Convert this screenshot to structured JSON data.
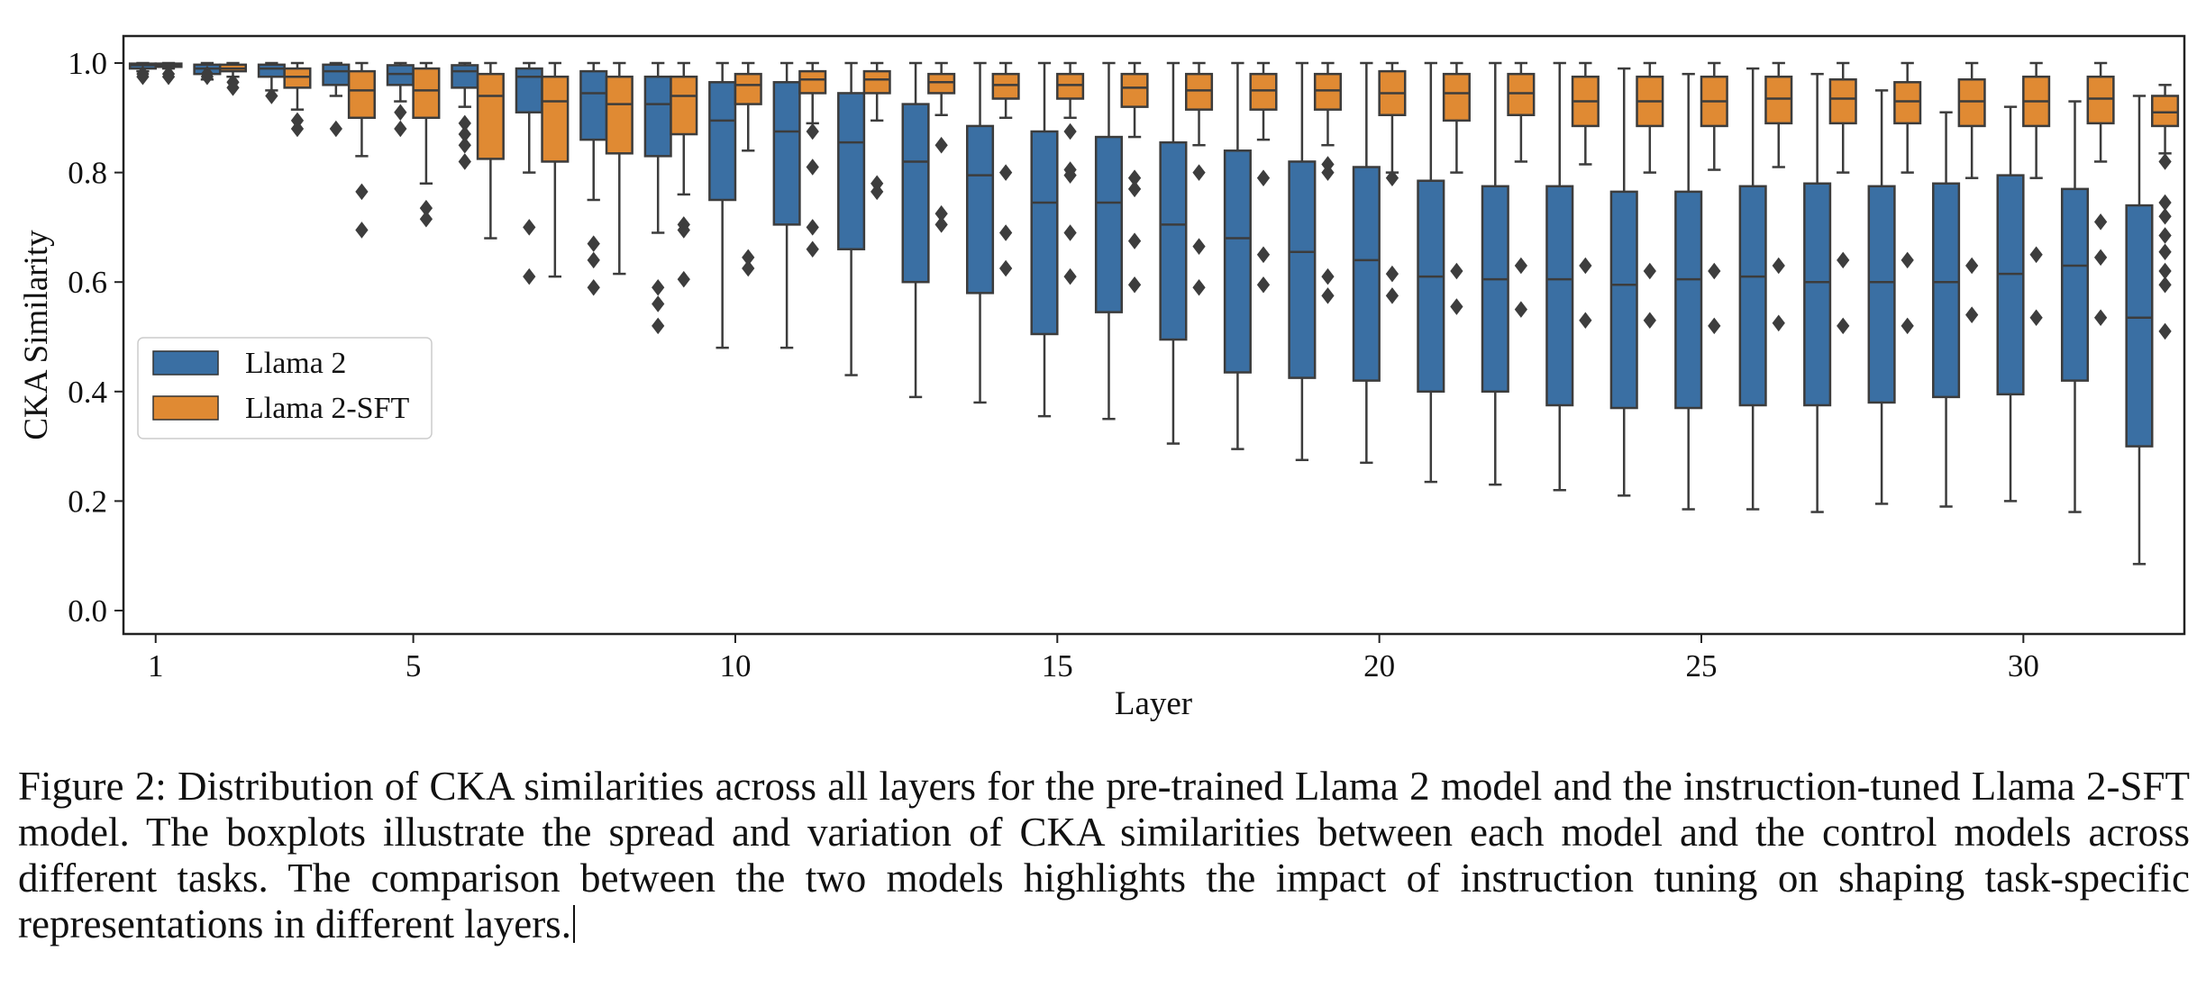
{
  "chart_data": {
    "type": "boxplot",
    "xlabel": "Layer",
    "ylabel": "CKA Similarity",
    "ylim": [
      0.0,
      1.0
    ],
    "yticks": [
      0.0,
      0.2,
      0.4,
      0.6,
      0.8,
      1.0
    ],
    "ytick_labels": [
      "0.0",
      "0.2",
      "0.4",
      "0.6",
      "0.8",
      "1.0"
    ],
    "xticks": [
      1,
      5,
      10,
      15,
      20,
      25,
      30
    ],
    "xtick_labels": [
      "1",
      "5",
      "10",
      "15",
      "20",
      "25",
      "30"
    ],
    "legend_position": "center-left",
    "grid": false,
    "categories": [
      1,
      2,
      3,
      4,
      5,
      6,
      7,
      8,
      9,
      10,
      11,
      12,
      13,
      14,
      15,
      16,
      17,
      18,
      19,
      20,
      21,
      22,
      23,
      24,
      25,
      26,
      27,
      28,
      29,
      30,
      31,
      32
    ],
    "series": [
      {
        "name": "Llama 2",
        "color": "#3a6fa3",
        "boxes": [
          {
            "layer": 1,
            "whislo": 0.985,
            "q1": 0.99,
            "med": 0.996,
            "q3": 0.999,
            "whishi": 1.0,
            "fliers": [
              0.975,
              0.98
            ]
          },
          {
            "layer": 2,
            "whislo": 0.97,
            "q1": 0.98,
            "med": 0.99,
            "q3": 0.997,
            "whishi": 1.0,
            "fliers": [
              0.975,
              0.98
            ]
          },
          {
            "layer": 3,
            "whislo": 0.95,
            "q1": 0.975,
            "med": 0.99,
            "q3": 0.997,
            "whishi": 1.0,
            "fliers": [
              0.94
            ]
          },
          {
            "layer": 4,
            "whislo": 0.94,
            "q1": 0.96,
            "med": 0.985,
            "q3": 0.997,
            "whishi": 1.0,
            "fliers": [
              0.88
            ]
          },
          {
            "layer": 5,
            "whislo": 0.93,
            "q1": 0.96,
            "med": 0.98,
            "q3": 0.996,
            "whishi": 1.0,
            "fliers": [
              0.91,
              0.88
            ]
          },
          {
            "layer": 6,
            "whislo": 0.92,
            "q1": 0.955,
            "med": 0.985,
            "q3": 0.996,
            "whishi": 1.0,
            "fliers": [
              0.89,
              0.87,
              0.85,
              0.82
            ]
          },
          {
            "layer": 7,
            "whislo": 0.8,
            "q1": 0.91,
            "med": 0.975,
            "q3": 0.99,
            "whishi": 1.0,
            "fliers": [
              0.7,
              0.61
            ]
          },
          {
            "layer": 8,
            "whislo": 0.75,
            "q1": 0.86,
            "med": 0.945,
            "q3": 0.985,
            "whishi": 1.0,
            "fliers": [
              0.67,
              0.64,
              0.59
            ]
          },
          {
            "layer": 9,
            "whislo": 0.69,
            "q1": 0.83,
            "med": 0.925,
            "q3": 0.975,
            "whishi": 1.0,
            "fliers": [
              0.59,
              0.56,
              0.52
            ]
          },
          {
            "layer": 10,
            "whislo": 0.48,
            "q1": 0.75,
            "med": 0.895,
            "q3": 0.965,
            "whishi": 1.0,
            "fliers": []
          },
          {
            "layer": 11,
            "whislo": 0.48,
            "q1": 0.705,
            "med": 0.875,
            "q3": 0.965,
            "whishi": 1.0,
            "fliers": []
          },
          {
            "layer": 12,
            "whislo": 0.43,
            "q1": 0.66,
            "med": 0.855,
            "q3": 0.945,
            "whishi": 1.0,
            "fliers": []
          },
          {
            "layer": 13,
            "whislo": 0.39,
            "q1": 0.6,
            "med": 0.82,
            "q3": 0.925,
            "whishi": 1.0,
            "fliers": []
          },
          {
            "layer": 14,
            "whislo": 0.38,
            "q1": 0.58,
            "med": 0.795,
            "q3": 0.885,
            "whishi": 1.0,
            "fliers": []
          },
          {
            "layer": 15,
            "whislo": 0.355,
            "q1": 0.505,
            "med": 0.745,
            "q3": 0.875,
            "whishi": 1.0,
            "fliers": []
          },
          {
            "layer": 16,
            "whislo": 0.35,
            "q1": 0.545,
            "med": 0.745,
            "q3": 0.865,
            "whishi": 1.0,
            "fliers": []
          },
          {
            "layer": 17,
            "whislo": 0.305,
            "q1": 0.495,
            "med": 0.705,
            "q3": 0.855,
            "whishi": 1.0,
            "fliers": []
          },
          {
            "layer": 18,
            "whislo": 0.295,
            "q1": 0.435,
            "med": 0.68,
            "q3": 0.84,
            "whishi": 1.0,
            "fliers": []
          },
          {
            "layer": 19,
            "whislo": 0.275,
            "q1": 0.425,
            "med": 0.655,
            "q3": 0.82,
            "whishi": 1.0,
            "fliers": []
          },
          {
            "layer": 20,
            "whislo": 0.27,
            "q1": 0.42,
            "med": 0.64,
            "q3": 0.81,
            "whishi": 1.0,
            "fliers": []
          },
          {
            "layer": 21,
            "whislo": 0.235,
            "q1": 0.4,
            "med": 0.61,
            "q3": 0.785,
            "whishi": 1.0,
            "fliers": []
          },
          {
            "layer": 22,
            "whislo": 0.23,
            "q1": 0.4,
            "med": 0.605,
            "q3": 0.775,
            "whishi": 1.0,
            "fliers": []
          },
          {
            "layer": 23,
            "whislo": 0.22,
            "q1": 0.375,
            "med": 0.605,
            "q3": 0.775,
            "whishi": 1.0,
            "fliers": []
          },
          {
            "layer": 24,
            "whislo": 0.21,
            "q1": 0.37,
            "med": 0.595,
            "q3": 0.765,
            "whishi": 0.99,
            "fliers": []
          },
          {
            "layer": 25,
            "whislo": 0.185,
            "q1": 0.37,
            "med": 0.605,
            "q3": 0.765,
            "whishi": 0.98,
            "fliers": []
          },
          {
            "layer": 26,
            "whislo": 0.185,
            "q1": 0.375,
            "med": 0.61,
            "q3": 0.775,
            "whishi": 0.99,
            "fliers": []
          },
          {
            "layer": 27,
            "whislo": 0.18,
            "q1": 0.375,
            "med": 0.6,
            "q3": 0.78,
            "whishi": 0.98,
            "fliers": []
          },
          {
            "layer": 28,
            "whislo": 0.195,
            "q1": 0.38,
            "med": 0.6,
            "q3": 0.775,
            "whishi": 0.95,
            "fliers": []
          },
          {
            "layer": 29,
            "whislo": 0.19,
            "q1": 0.39,
            "med": 0.6,
            "q3": 0.78,
            "whishi": 0.91,
            "fliers": []
          },
          {
            "layer": 30,
            "whislo": 0.2,
            "q1": 0.395,
            "med": 0.615,
            "q3": 0.795,
            "whishi": 0.92,
            "fliers": []
          },
          {
            "layer": 31,
            "whislo": 0.18,
            "q1": 0.42,
            "med": 0.63,
            "q3": 0.77,
            "whishi": 0.93,
            "fliers": []
          },
          {
            "layer": 32,
            "whislo": 0.085,
            "q1": 0.3,
            "med": 0.535,
            "q3": 0.74,
            "whishi": 0.94,
            "fliers": []
          }
        ]
      },
      {
        "name": "Llama 2-SFT",
        "color": "#e08a33",
        "boxes": [
          {
            "layer": 1,
            "whislo": 0.99,
            "q1": 0.993,
            "med": 0.997,
            "q3": 0.999,
            "whishi": 1.0,
            "fliers": [
              0.98,
              0.975
            ]
          },
          {
            "layer": 2,
            "whislo": 0.975,
            "q1": 0.985,
            "med": 0.99,
            "q3": 0.997,
            "whishi": 1.0,
            "fliers": [
              0.965,
              0.955
            ]
          },
          {
            "layer": 3,
            "whislo": 0.915,
            "q1": 0.955,
            "med": 0.975,
            "q3": 0.99,
            "whishi": 1.0,
            "fliers": [
              0.895,
              0.88
            ]
          },
          {
            "layer": 4,
            "whislo": 0.83,
            "q1": 0.9,
            "med": 0.95,
            "q3": 0.985,
            "whishi": 1.0,
            "fliers": [
              0.765,
              0.695
            ]
          },
          {
            "layer": 5,
            "whislo": 0.78,
            "q1": 0.9,
            "med": 0.95,
            "q3": 0.99,
            "whishi": 1.0,
            "fliers": [
              0.735,
              0.715
            ]
          },
          {
            "layer": 6,
            "whislo": 0.68,
            "q1": 0.825,
            "med": 0.94,
            "q3": 0.98,
            "whishi": 1.0,
            "fliers": []
          },
          {
            "layer": 7,
            "whislo": 0.61,
            "q1": 0.82,
            "med": 0.93,
            "q3": 0.975,
            "whishi": 1.0,
            "fliers": []
          },
          {
            "layer": 8,
            "whislo": 0.615,
            "q1": 0.835,
            "med": 0.925,
            "q3": 0.975,
            "whishi": 1.0,
            "fliers": []
          },
          {
            "layer": 9,
            "whislo": 0.76,
            "q1": 0.87,
            "med": 0.94,
            "q3": 0.975,
            "whishi": 1.0,
            "fliers": [
              0.705,
              0.695,
              0.605
            ]
          },
          {
            "layer": 10,
            "whislo": 0.84,
            "q1": 0.925,
            "med": 0.96,
            "q3": 0.98,
            "whishi": 1.0,
            "fliers": [
              0.645,
              0.625
            ]
          },
          {
            "layer": 11,
            "whislo": 0.89,
            "q1": 0.945,
            "med": 0.97,
            "q3": 0.985,
            "whishi": 1.0,
            "fliers": [
              0.875,
              0.81,
              0.7,
              0.66
            ]
          },
          {
            "layer": 12,
            "whislo": 0.895,
            "q1": 0.945,
            "med": 0.97,
            "q3": 0.985,
            "whishi": 1.0,
            "fliers": [
              0.78,
              0.765
            ]
          },
          {
            "layer": 13,
            "whislo": 0.905,
            "q1": 0.945,
            "med": 0.965,
            "q3": 0.98,
            "whishi": 1.0,
            "fliers": [
              0.85,
              0.725,
              0.705
            ]
          },
          {
            "layer": 14,
            "whislo": 0.9,
            "q1": 0.935,
            "med": 0.96,
            "q3": 0.98,
            "whishi": 1.0,
            "fliers": [
              0.8,
              0.69,
              0.625
            ]
          },
          {
            "layer": 15,
            "whislo": 0.9,
            "q1": 0.935,
            "med": 0.96,
            "q3": 0.98,
            "whishi": 1.0,
            "fliers": [
              0.875,
              0.805,
              0.795,
              0.69,
              0.61
            ]
          },
          {
            "layer": 16,
            "whislo": 0.865,
            "q1": 0.92,
            "med": 0.955,
            "q3": 0.98,
            "whishi": 1.0,
            "fliers": [
              0.79,
              0.77,
              0.675,
              0.595
            ]
          },
          {
            "layer": 17,
            "whislo": 0.85,
            "q1": 0.915,
            "med": 0.95,
            "q3": 0.98,
            "whishi": 1.0,
            "fliers": [
              0.8,
              0.665,
              0.59
            ]
          },
          {
            "layer": 18,
            "whislo": 0.86,
            "q1": 0.915,
            "med": 0.95,
            "q3": 0.98,
            "whishi": 1.0,
            "fliers": [
              0.79,
              0.65,
              0.595
            ]
          },
          {
            "layer": 19,
            "whislo": 0.85,
            "q1": 0.915,
            "med": 0.95,
            "q3": 0.98,
            "whishi": 1.0,
            "fliers": [
              0.815,
              0.8,
              0.61,
              0.575
            ]
          },
          {
            "layer": 20,
            "whislo": 0.8,
            "q1": 0.905,
            "med": 0.945,
            "q3": 0.985,
            "whishi": 1.0,
            "fliers": [
              0.79,
              0.615,
              0.575
            ]
          },
          {
            "layer": 21,
            "whislo": 0.8,
            "q1": 0.895,
            "med": 0.945,
            "q3": 0.98,
            "whishi": 1.0,
            "fliers": [
              0.62,
              0.555
            ]
          },
          {
            "layer": 22,
            "whislo": 0.82,
            "q1": 0.905,
            "med": 0.945,
            "q3": 0.98,
            "whishi": 1.0,
            "fliers": [
              0.63,
              0.55
            ]
          },
          {
            "layer": 23,
            "whislo": 0.815,
            "q1": 0.885,
            "med": 0.93,
            "q3": 0.975,
            "whishi": 1.0,
            "fliers": [
              0.63,
              0.53
            ]
          },
          {
            "layer": 24,
            "whislo": 0.8,
            "q1": 0.885,
            "med": 0.93,
            "q3": 0.975,
            "whishi": 1.0,
            "fliers": [
              0.62,
              0.53
            ]
          },
          {
            "layer": 25,
            "whislo": 0.805,
            "q1": 0.885,
            "med": 0.93,
            "q3": 0.975,
            "whishi": 1.0,
            "fliers": [
              0.62,
              0.52
            ]
          },
          {
            "layer": 26,
            "whislo": 0.81,
            "q1": 0.89,
            "med": 0.935,
            "q3": 0.975,
            "whishi": 1.0,
            "fliers": [
              0.63,
              0.525
            ]
          },
          {
            "layer": 27,
            "whislo": 0.8,
            "q1": 0.89,
            "med": 0.935,
            "q3": 0.97,
            "whishi": 1.0,
            "fliers": [
              0.64,
              0.52
            ]
          },
          {
            "layer": 28,
            "whislo": 0.8,
            "q1": 0.89,
            "med": 0.93,
            "q3": 0.965,
            "whishi": 1.0,
            "fliers": [
              0.64,
              0.52
            ]
          },
          {
            "layer": 29,
            "whislo": 0.79,
            "q1": 0.885,
            "med": 0.93,
            "q3": 0.97,
            "whishi": 1.0,
            "fliers": [
              0.63,
              0.54
            ]
          },
          {
            "layer": 30,
            "whislo": 0.79,
            "q1": 0.885,
            "med": 0.93,
            "q3": 0.975,
            "whishi": 1.0,
            "fliers": [
              0.65,
              0.535
            ]
          },
          {
            "layer": 31,
            "whislo": 0.82,
            "q1": 0.89,
            "med": 0.935,
            "q3": 0.975,
            "whishi": 1.0,
            "fliers": [
              0.71,
              0.645,
              0.535
            ]
          },
          {
            "layer": 32,
            "whislo": 0.835,
            "q1": 0.885,
            "med": 0.91,
            "q3": 0.94,
            "whishi": 0.96,
            "fliers": [
              0.82,
              0.745,
              0.72,
              0.685,
              0.655,
              0.62,
              0.595,
              0.51
            ]
          }
        ]
      }
    ]
  },
  "caption": {
    "text": "Figure 2: Distribution of CKA similarities across all layers for the pre-trained Llama 2 model and the instruction-tuned Llama 2-SFT model. The boxplots illustrate the spread and variation of CKA similarities between each model and the control models across different tasks. The comparison between the two models highlights the impact of instruction tuning on shaping task-specific representations in different layers."
  }
}
